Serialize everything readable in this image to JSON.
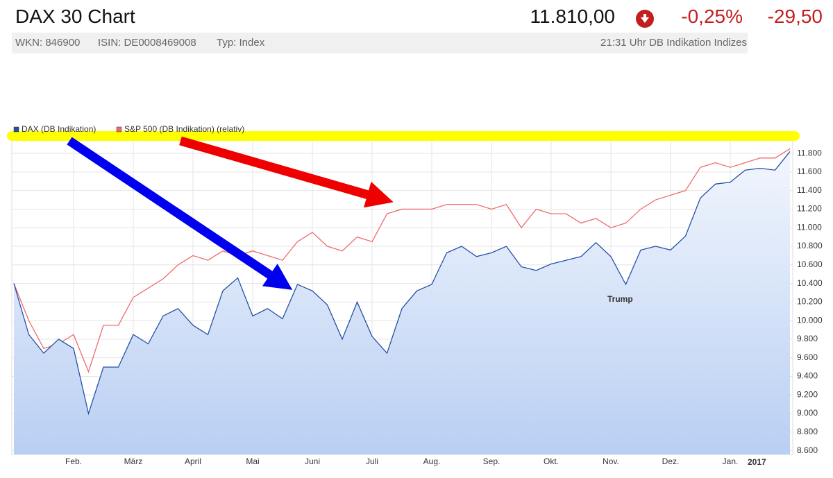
{
  "header": {
    "title": "DAX 30 Chart",
    "price": "11.810,00",
    "change_percent": "-0,25%",
    "change": "-29,50",
    "info": [
      "WKN: 846900",
      "ISIN: DE0008469008",
      "Typ: Index"
    ],
    "timestamp": "21:31 Uhr DB Indikation Indizes"
  },
  "chart_data": {
    "type": "line",
    "categories": [
      null,
      null,
      null,
      null,
      "Feb.",
      null,
      null,
      null,
      "März",
      null,
      null,
      null,
      "April",
      null,
      null,
      null,
      "Mai",
      null,
      null,
      null,
      "Juni",
      null,
      null,
      null,
      "Juli",
      null,
      null,
      null,
      "Aug.",
      null,
      null,
      null,
      "Sep.",
      null,
      null,
      null,
      "Okt.",
      null,
      null,
      null,
      "Nov.",
      null,
      null,
      null,
      "Dez.",
      null,
      null,
      null,
      "Jan.",
      null,
      null,
      null,
      null
    ],
    "series": [
      {
        "name": "DAX (DB Indikation)",
        "color": "#2350a8",
        "fill": true,
        "values": [
          10400,
          9850,
          9650,
          9800,
          9700,
          9000,
          9500,
          9500,
          9850,
          9750,
          10050,
          10130,
          9950,
          9850,
          10320,
          10460,
          10050,
          10130,
          10020,
          10390,
          10320,
          10170,
          9800,
          10200,
          9830,
          9650,
          10130,
          10320,
          10390,
          10730,
          10800,
          10690,
          10730,
          10800,
          10580,
          10540,
          10610,
          10650,
          10690,
          10840,
          10690,
          10390,
          10760,
          10800,
          10760,
          10910,
          11320,
          11470,
          11490,
          11620,
          11640,
          11620,
          11820
        ]
      },
      {
        "name": "S&P 500 (DB Indikation) (relativ)",
        "color": "#f06a6a",
        "fill": false,
        "values": [
          10400,
          10000,
          9700,
          9750,
          9850,
          9450,
          9950,
          9950,
          10250,
          10350,
          10450,
          10600,
          10700,
          10650,
          10750,
          10700,
          10750,
          10700,
          10650,
          10850,
          10950,
          10800,
          10750,
          10900,
          10850,
          11150,
          11200,
          11200,
          11200,
          11250,
          11250,
          11250,
          11200,
          11250,
          11000,
          11200,
          11150,
          11150,
          11050,
          11100,
          11000,
          11050,
          11200,
          11300,
          11350,
          11400,
          11650,
          11700,
          11650,
          11700,
          11750,
          11750,
          11850
        ]
      }
    ],
    "ylim": [
      8560,
      11980
    ],
    "yticks": [
      {
        "value": 8600,
        "label": "8.600"
      },
      {
        "value": 8800,
        "label": "8.800"
      },
      {
        "value": 9000,
        "label": "9.000"
      },
      {
        "value": 9200,
        "label": "9.200"
      },
      {
        "value": 9400,
        "label": "9.400"
      },
      {
        "value": 9600,
        "label": "9.600"
      },
      {
        "value": 9800,
        "label": "9.800"
      },
      {
        "value": 10000,
        "label": "10.000"
      },
      {
        "value": 10200,
        "label": "10.200"
      },
      {
        "value": 10400,
        "label": "10.400"
      },
      {
        "value": 10600,
        "label": "10.600"
      },
      {
        "value": 10800,
        "label": "10.800"
      },
      {
        "value": 11000,
        "label": "11.000"
      },
      {
        "value": 11200,
        "label": "11.200"
      },
      {
        "value": 11400,
        "label": "11.400"
      },
      {
        "value": 11600,
        "label": "11.600"
      },
      {
        "value": 11800,
        "label": "11.800"
      }
    ],
    "grid": true,
    "legend": "top-left",
    "annotations": [
      "Trump",
      "2017"
    ]
  }
}
